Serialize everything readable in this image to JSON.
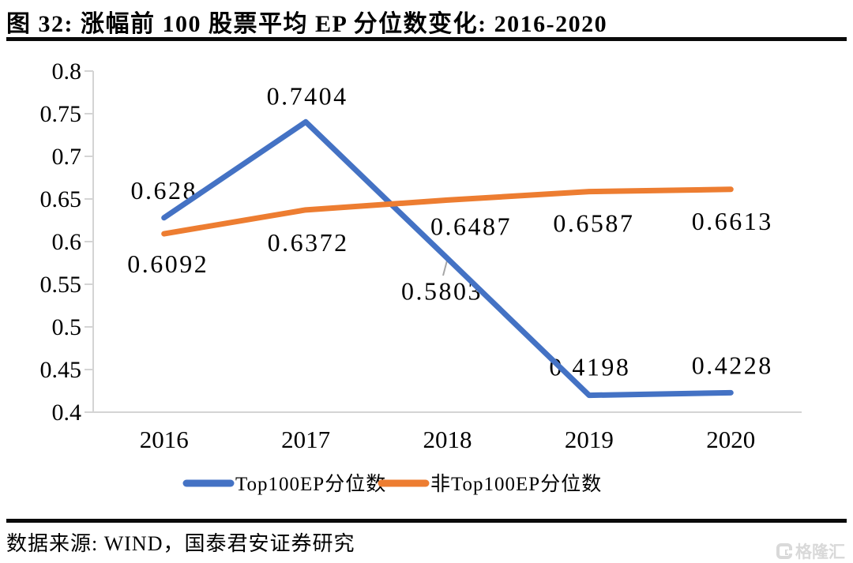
{
  "page": {
    "title": "图 32: 涨幅前 100 股票平均 EP 分位数变化: 2016-2020",
    "source": "数据来源: WIND，国泰君安证券研究",
    "watermark": "格隆汇"
  },
  "chart_data": {
    "type": "line",
    "title": "图 32: 涨幅前 100 股票平均 EP 分位数变化: 2016-2020",
    "categories": [
      "2016",
      "2017",
      "2018",
      "2019",
      "2020"
    ],
    "series": [
      {
        "name": "Top100EP分位数",
        "color": "#4472C4",
        "values": [
          0.628,
          0.7404,
          0.5803,
          0.4198,
          0.4228
        ],
        "labels": [
          "0.628",
          "0.7404",
          "0.5803",
          "0.4198",
          "0.4228"
        ]
      },
      {
        "name": "非Top100EP分位数",
        "color": "#ED7D31",
        "values": [
          0.6092,
          0.6372,
          0.6487,
          0.6587,
          0.6613
        ],
        "labels": [
          "0.6092",
          "0.6372",
          "0.6487",
          "0.6587",
          "0.6613"
        ]
      }
    ],
    "xlabel": "",
    "ylabel": "",
    "ylim": [
      0.4,
      0.8
    ],
    "yticks": [
      "0.8",
      "0.75",
      "0.7",
      "0.65",
      "0.6",
      "0.55",
      "0.5",
      "0.45",
      "0.4"
    ],
    "grid": false,
    "legend_position": "bottom",
    "axis_color": "#d4d4d4",
    "leader_color": "#a6a6a6",
    "text_color": "#000000"
  }
}
